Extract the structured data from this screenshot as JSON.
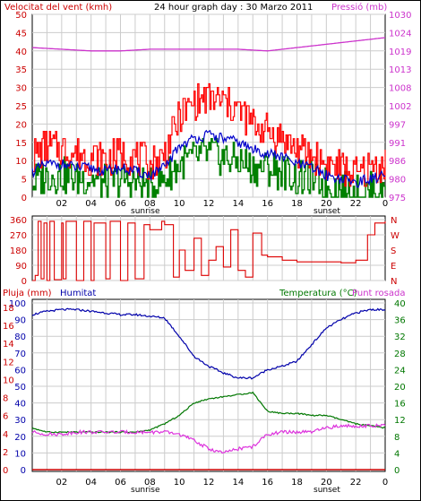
{
  "header": {
    "left_title": "Velocitat del vent (kmh)",
    "center_title": "24 hour graph day : 30 Marzo 2011",
    "right_title": "Pressió (mb)"
  },
  "panel3_labels": {
    "rain": "Pluja (mm)",
    "humidity": "Humitat",
    "temperature": "Temperatura (°C)",
    "dew": "Punt rosada"
  },
  "x_ticks": [
    "02",
    "04",
    "06",
    "08",
    "10",
    "12",
    "14",
    "16",
    "18",
    "20",
    "22",
    "0"
  ],
  "sun_labels": {
    "sunrise": "sunrise",
    "sunset": "sunset"
  },
  "colors": {
    "wind_gust": "#ff0000",
    "wind_avg": "#0000cc",
    "wind_low": "#008000",
    "pressure": "#cc33cc",
    "direction": "#dd0000",
    "humidity": "#0000aa",
    "temperature": "#007700",
    "dew_point": "#dd33dd",
    "rain": "#cc0000",
    "grid": "#cccccc"
  },
  "chart_data": [
    {
      "type": "line",
      "title": "24 hour graph day : 30 Marzo 2011",
      "y_left_ticks": [
        "0",
        "5",
        "10",
        "15",
        "20",
        "25",
        "30",
        "35",
        "40",
        "45",
        "50"
      ],
      "y_right_ticks": [
        "975",
        "980",
        "986",
        "991",
        "997",
        "1002",
        "1008",
        "1013",
        "1019",
        "1024",
        "1030"
      ],
      "ylim_left": [
        0,
        50
      ],
      "ylim_right": [
        975,
        1030
      ],
      "series": [
        {
          "name": "wind_gust",
          "x": [
            0,
            1,
            2,
            3,
            4,
            5,
            6,
            7,
            8,
            9,
            10,
            11,
            12,
            13,
            14,
            15,
            16,
            17,
            18,
            19,
            20,
            21,
            22,
            23,
            24
          ],
          "values": [
            11,
            14,
            13,
            12,
            11,
            10,
            12,
            11,
            9,
            12,
            22,
            26,
            27,
            26,
            24,
            20,
            18,
            16,
            13,
            11,
            9,
            8,
            6,
            8,
            9
          ]
        },
        {
          "name": "wind_avg",
          "x": [
            0,
            1,
            2,
            3,
            4,
            5,
            6,
            7,
            8,
            9,
            10,
            11,
            12,
            13,
            14,
            15,
            16,
            17,
            18,
            19,
            20,
            21,
            22,
            23,
            24
          ],
          "values": [
            7,
            9,
            9,
            8,
            8,
            7,
            8,
            7,
            6,
            8,
            14,
            16,
            17,
            16,
            15,
            13,
            12,
            11,
            9,
            8,
            6,
            5,
            4,
            5,
            6
          ]
        },
        {
          "name": "wind_low",
          "x": [
            0,
            1,
            2,
            3,
            4,
            5,
            6,
            7,
            8,
            9,
            10,
            11,
            12,
            13,
            14,
            15,
            16,
            17,
            18,
            19,
            20,
            21,
            22,
            23,
            24
          ],
          "values": [
            4,
            6,
            6,
            5,
            5,
            4,
            5,
            4,
            3,
            5,
            9,
            11,
            12,
            11,
            10,
            8,
            8,
            7,
            5,
            5,
            3,
            2,
            1,
            2,
            3
          ]
        },
        {
          "name": "pressure",
          "x": [
            0,
            2,
            4,
            6,
            8,
            10,
            12,
            14,
            16,
            18,
            20,
            22,
            24
          ],
          "values": [
            1020,
            1019.5,
            1019,
            1019,
            1019.5,
            1019.5,
            1019.5,
            1019.5,
            1019,
            1020,
            1021,
            1022,
            1023
          ]
        }
      ]
    },
    {
      "type": "line",
      "y_left_ticks": [
        "0",
        "90",
        "180",
        "270",
        "360"
      ],
      "y_right_ticks": [
        "N",
        "E",
        "S",
        "W",
        "N"
      ],
      "ylim": [
        0,
        360
      ],
      "series": [
        {
          "name": "direction",
          "x": [
            0,
            0.2,
            0.4,
            0.6,
            0.8,
            1.0,
            1.2,
            1.5,
            2.0,
            2.1,
            2.3,
            3.0,
            3.5,
            4.0,
            4.2,
            5.0,
            5.3,
            6.0,
            6.5,
            7.0,
            7.6,
            8.0,
            8.8,
            9.0,
            9.6,
            10.0,
            10.4,
            11.0,
            11.5,
            12.0,
            12.5,
            13.0,
            13.5,
            14.0,
            14.5,
            15.0,
            15.6,
            16.0,
            17.0,
            18.0,
            19.0,
            20.0,
            21.0,
            22.0,
            22.8,
            23.3,
            24.0
          ],
          "values": [
            0,
            30,
            350,
            10,
            340,
            0,
            350,
            5,
            340,
            10,
            350,
            0,
            350,
            0,
            340,
            10,
            350,
            0,
            340,
            10,
            330,
            300,
            350,
            330,
            20,
            180,
            60,
            250,
            30,
            120,
            200,
            80,
            300,
            60,
            20,
            280,
            150,
            140,
            120,
            110,
            110,
            110,
            105,
            120,
            270,
            340,
            350
          ]
        }
      ]
    },
    {
      "type": "line",
      "y_left_ticks": [
        "0",
        "10",
        "20",
        "30",
        "40",
        "50",
        "60",
        "70",
        "80",
        "90",
        "100"
      ],
      "y_left2_ticks": [
        "0",
        "2",
        "4",
        "6",
        "8",
        "10",
        "12",
        "14",
        "16",
        "18"
      ],
      "y_right_ticks": [
        "0",
        "4",
        "8",
        "12",
        "16",
        "20",
        "24",
        "28",
        "32",
        "36",
        "40"
      ],
      "ylim_humidity": [
        0,
        100
      ],
      "ylim_temperature": [
        0,
        40
      ],
      "series": [
        {
          "name": "humidity",
          "x": [
            0,
            1,
            2,
            3,
            4,
            5,
            6,
            7,
            8,
            9,
            10,
            11,
            12,
            13,
            14,
            15,
            16,
            17,
            18,
            19,
            20,
            21,
            22,
            23,
            24
          ],
          "values": [
            93,
            95,
            96,
            96,
            95,
            94,
            93,
            93,
            92,
            91,
            80,
            68,
            62,
            58,
            55,
            55,
            60,
            62,
            65,
            75,
            85,
            90,
            94,
            96,
            96
          ]
        },
        {
          "name": "temperature",
          "x": [
            0,
            1,
            2,
            3,
            4,
            5,
            6,
            7,
            8,
            9,
            10,
            11,
            12,
            13,
            14,
            15,
            16,
            17,
            18,
            19,
            20,
            21,
            22,
            23,
            24
          ],
          "values": [
            10,
            9,
            9,
            9,
            9,
            9,
            9,
            9,
            9.5,
            11,
            13,
            16,
            17,
            17.5,
            18,
            18.5,
            14,
            13.5,
            13.5,
            13,
            13,
            12,
            11,
            10.5,
            10
          ]
        },
        {
          "name": "dew_point",
          "x": [
            0,
            1,
            2,
            3,
            4,
            5,
            6,
            7,
            8,
            9,
            10,
            11,
            12,
            13,
            14,
            15,
            16,
            17,
            18,
            19,
            20,
            21,
            22,
            23,
            24
          ],
          "values": [
            9,
            8.5,
            8.5,
            9,
            9,
            9,
            9,
            9,
            9,
            9,
            8.5,
            7,
            5,
            4,
            5,
            5.5,
            8.5,
            9,
            9,
            9,
            10,
            10.5,
            10.5,
            10.5,
            10.5
          ]
        },
        {
          "name": "rain",
          "x": [
            0,
            24
          ],
          "values": [
            0,
            0
          ]
        }
      ]
    }
  ]
}
